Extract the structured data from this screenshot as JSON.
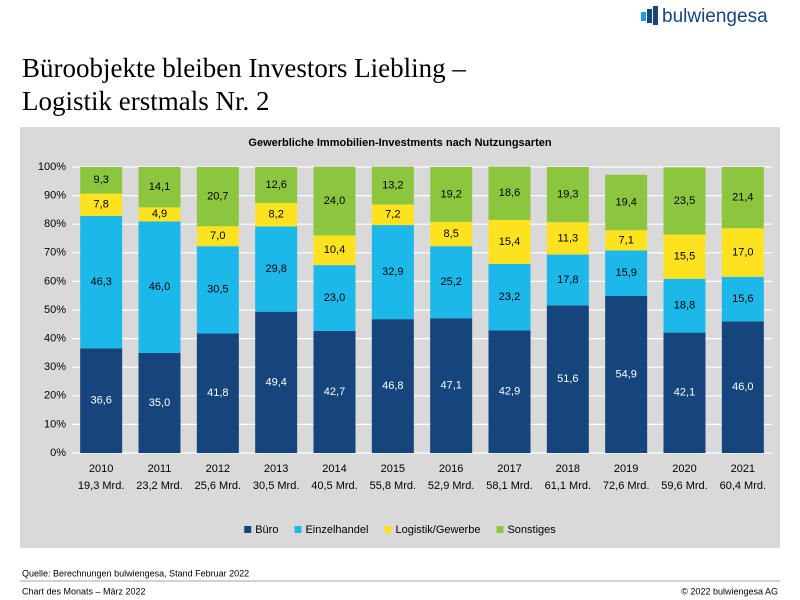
{
  "header": {
    "logo": "bulwiengesa",
    "title_lines": [
      "Büroobjekte bleiben Investors Liebling –",
      "Logistik erstmals Nr. 2"
    ]
  },
  "chart_data": {
    "type": "stacked_bar",
    "title": "Gewerbliche Immobilien-Investments nach Nutzungsarten",
    "categories": [
      "2010",
      "2011",
      "2012",
      "2013",
      "2014",
      "2015",
      "2016",
      "2017",
      "2018",
      "2019",
      "2020",
      "2021"
    ],
    "category_sublabels": [
      "19,3 Mrd.",
      "23,2 Mrd.",
      "25,6 Mrd.",
      "30,5 Mrd.",
      "40,5 Mrd.",
      "55,8 Mrd.",
      "52,9 Mrd.",
      "58,1 Mrd.",
      "61,1 Mrd.",
      "72,6 Mrd.",
      "59,6 Mrd.",
      "60,4 Mrd."
    ],
    "series": [
      {
        "name": "Büro",
        "color": "#15457c",
        "values": [
          36.6,
          35.0,
          41.8,
          49.4,
          42.7,
          46.8,
          47.1,
          42.9,
          51.6,
          54.9,
          42.1,
          46.0
        ],
        "value_labels": [
          "36,6",
          "35,0",
          "41,8",
          "49,4",
          "42,7",
          "46,8",
          "47,1",
          "42,9",
          "51,6",
          "54,9",
          "42,1",
          "46,0"
        ]
      },
      {
        "name": "Einzelhandel",
        "color": "#1db8ea",
        "values": [
          46.3,
          46.0,
          30.5,
          29.8,
          23.0,
          32.9,
          25.2,
          23.2,
          17.8,
          15.9,
          18.8,
          15.6
        ],
        "value_labels": [
          "46,3",
          "46,0",
          "30,5",
          "29,8",
          "23,0",
          "32,9",
          "25,2",
          "23,2",
          "17,8",
          "15,9",
          "18,8",
          "15,6"
        ]
      },
      {
        "name": "Logistik/Gewerbe",
        "color": "#fde31f",
        "values": [
          7.8,
          4.9,
          7.0,
          8.2,
          10.4,
          7.2,
          8.5,
          15.4,
          11.3,
          7.1,
          15.5,
          17.0
        ],
        "value_labels": [
          "7,8",
          "4,9",
          "7,0",
          "8,2",
          "10,4",
          "7,2",
          "8,5",
          "15,4",
          "11,3",
          "7,1",
          "15,5",
          "17,0"
        ]
      },
      {
        "name": "Sonstiges",
        "color": "#8cc63f",
        "values": [
          9.3,
          14.1,
          20.7,
          12.6,
          24.0,
          13.2,
          19.2,
          18.6,
          19.3,
          19.4,
          23.5,
          21.4
        ],
        "value_labels": [
          "9,3",
          "14,1",
          "20,7",
          "12,6",
          "24,0",
          "13,2",
          "19,2",
          "18,6",
          "19,3",
          "19,4",
          "23,5",
          "21,4"
        ]
      }
    ],
    "ylim": [
      0,
      100
    ],
    "yticks": [
      {
        "value": 0,
        "label": "0%"
      },
      {
        "value": 10,
        "label": "10%"
      },
      {
        "value": 20,
        "label": "20%"
      },
      {
        "value": 30,
        "label": "30%"
      },
      {
        "value": 40,
        "label": "40%"
      },
      {
        "value": 50,
        "label": "50%"
      },
      {
        "value": 60,
        "label": "60%"
      },
      {
        "value": 70,
        "label": "70%"
      },
      {
        "value": 80,
        "label": "80%"
      },
      {
        "value": 90,
        "label": "90%"
      },
      {
        "value": 100,
        "label": "100%"
      }
    ],
    "grid": true,
    "legend": "bottom"
  },
  "footer": {
    "source": "Quelle: Berechnungen bulwiengesa, Stand Februar 2022",
    "left": "Chart des Monats – März 2022",
    "right": "© 2022 bulwiengesa AG"
  }
}
